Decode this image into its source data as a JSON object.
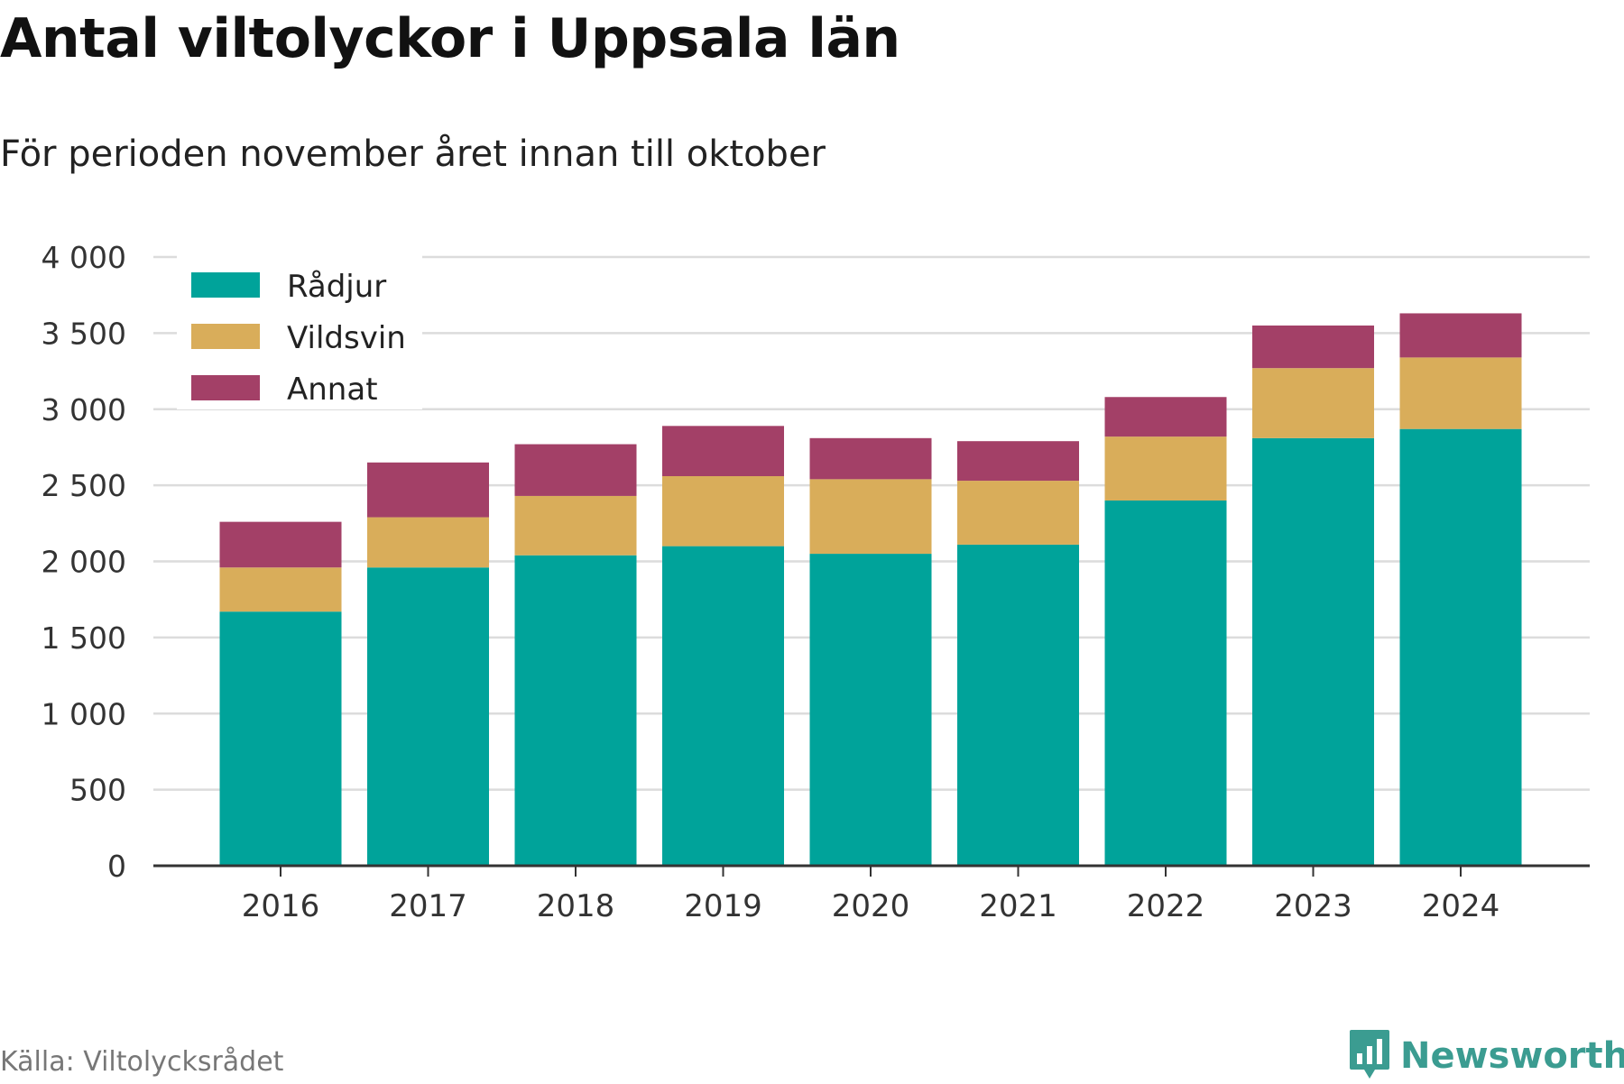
{
  "header": {
    "title": "Antal viltolyckor i Uppsala län",
    "subtitle": "För perioden november året innan till oktober"
  },
  "footer": {
    "source": "Källa: Viltolycksrådet",
    "brand": "Newsworthy",
    "brand_icon": "bar-chart-icon"
  },
  "colors": {
    "grid": "#dcdcdc",
    "axis": "#333333",
    "tick_text": "#333333",
    "brand": "#3b9c91"
  },
  "chart_data": {
    "type": "bar",
    "stacked": true,
    "categories": [
      "2016",
      "2017",
      "2018",
      "2019",
      "2020",
      "2021",
      "2022",
      "2023",
      "2024"
    ],
    "series": [
      {
        "name": "Rådjur",
        "color": "#00a39a",
        "values": [
          1670,
          1960,
          2040,
          2100,
          2050,
          2110,
          2400,
          2810,
          2870
        ]
      },
      {
        "name": "Vildsvin",
        "color": "#d9ad5a",
        "values": [
          290,
          330,
          390,
          460,
          490,
          420,
          420,
          460,
          470
        ]
      },
      {
        "name": "Annat",
        "color": "#a34067",
        "values": [
          300,
          360,
          340,
          330,
          270,
          260,
          260,
          280,
          290
        ]
      }
    ],
    "ylim": [
      0,
      4000
    ],
    "yticks": [
      0,
      500,
      1000,
      1500,
      2000,
      2500,
      3000,
      3500,
      4000
    ],
    "ytick_labels": [
      "0",
      "500",
      "1 000",
      "1 500",
      "2 000",
      "2 500",
      "3 000",
      "3 500",
      "4 000"
    ],
    "grid": true,
    "legend_position": "top-left"
  }
}
